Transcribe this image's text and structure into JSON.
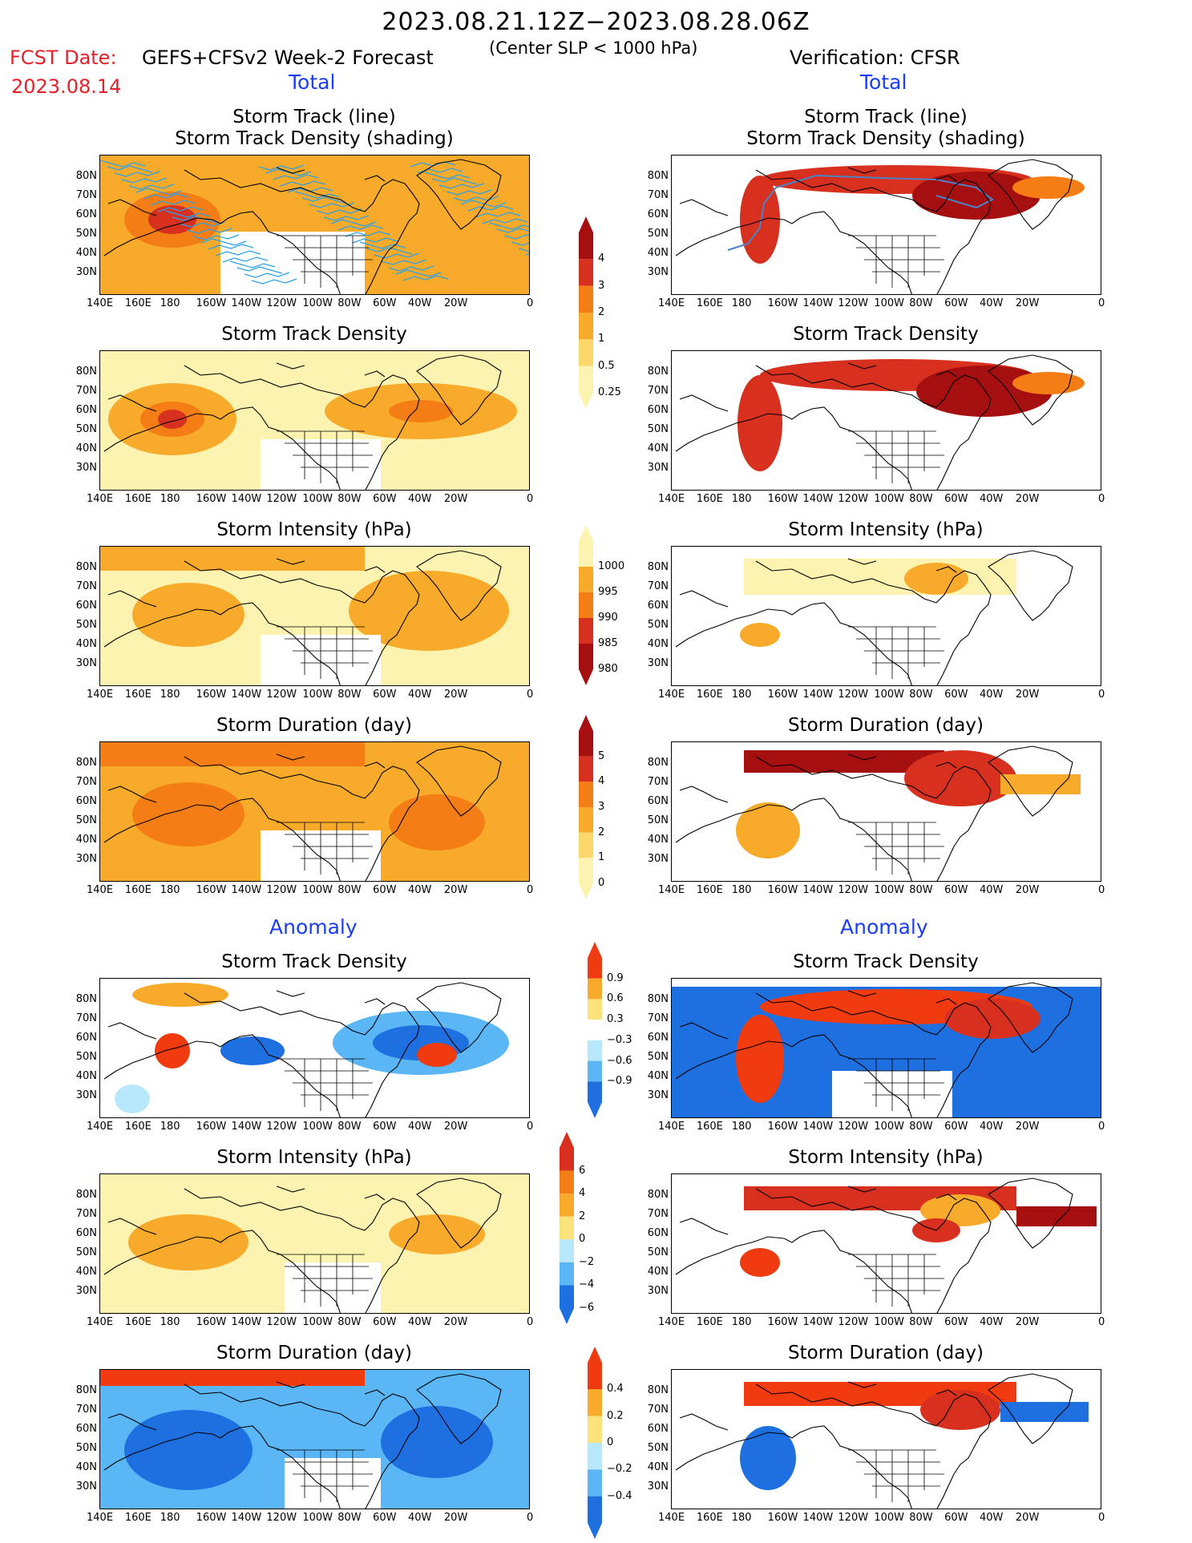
{
  "header": {
    "period": "2023.08.21.12Z−2023.08.28.06Z",
    "fcst_label": "FCST Date:",
    "fcst_model": "GEFS+CFSv2 Week-2 Forecast",
    "criteria": "(Center SLP < 1000 hPa)",
    "fcst_date": "2023.08.14",
    "verification": "Verification: CFSR",
    "total_left": "Total",
    "total_right": "Total",
    "anomaly_left": "Anomaly",
    "anomaly_right": "Anomaly"
  },
  "panel_titles": {
    "track_line": "Storm Track (line)",
    "track_shading": "Storm Track Density (shading)",
    "density": "Storm Track Density",
    "intensity": "Storm Intensity (hPa)",
    "duration": "Storm Duration (day)"
  },
  "axes": {
    "lat_labels": [
      "80N",
      "70N",
      "60N",
      "50N",
      "40N",
      "30N"
    ],
    "lon_labels": [
      "140E",
      "160E",
      "180",
      "160W",
      "140W",
      "120W",
      "100W",
      "80W",
      "60W",
      "40W",
      "20W",
      "0"
    ]
  },
  "colorbars": {
    "density_total": {
      "labels": [
        "4",
        "3",
        "2",
        "1",
        "0.5",
        "0.25"
      ],
      "colors": [
        "#a50f0f",
        "#d7301f",
        "#f47d16",
        "#f8ab2a",
        "#fbd66a",
        "#fdf3b0"
      ]
    },
    "intensity_total": {
      "labels": [
        "1000",
        "995",
        "990",
        "985",
        "980"
      ],
      "colors": [
        "#fdf3b0",
        "#f8ab2a",
        "#f47d16",
        "#d7301f",
        "#a50f0f"
      ]
    },
    "duration_total": {
      "labels": [
        "5",
        "4",
        "3",
        "2",
        "1",
        "0"
      ],
      "colors": [
        "#a50f0f",
        "#d7301f",
        "#f47d16",
        "#f8ab2a",
        "#fbd66a",
        "#fdf3b0"
      ]
    },
    "density_anom": {
      "labels": [
        "0.9",
        "0.6",
        "0.3",
        "−0.3",
        "−0.6",
        "−0.9"
      ],
      "colors": [
        "#f03a10",
        "#f8ab2a",
        "#fbe27a",
        "#ffffff",
        "#b8e8fb",
        "#5bb6f5",
        "#1e6fe0"
      ]
    },
    "intensity_anom": {
      "labels": [
        "6",
        "4",
        "2",
        "0",
        "−2",
        "−4",
        "−6"
      ],
      "colors": [
        "#d7301f",
        "#f47d16",
        "#f8ab2a",
        "#fbe27a",
        "#b8e8fb",
        "#5bb6f5",
        "#1e6fe0"
      ]
    },
    "duration_anom": {
      "labels": [
        "0.4",
        "0.2",
        "0",
        "−0.2",
        "−0.4"
      ],
      "colors": [
        "#f03a10",
        "#f8ab2a",
        "#fbe27a",
        "#b8e8fb",
        "#5bb6f5",
        "#1e6fe0"
      ]
    }
  },
  "colors": {
    "ocean_shade_light": "#fdf3b0",
    "track_lines": "#2aa0e8",
    "cold": "#1e6fe0",
    "warm": "#e8491d"
  }
}
